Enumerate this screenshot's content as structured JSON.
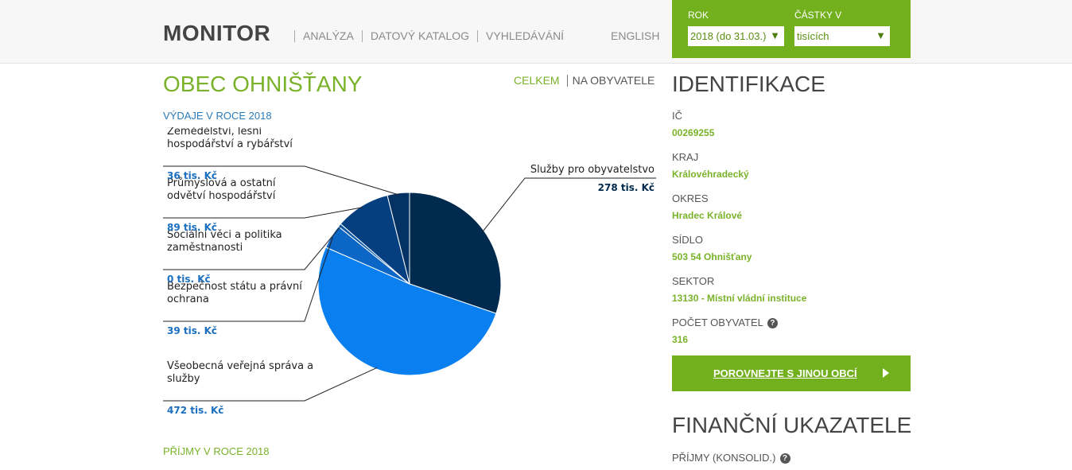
{
  "header": {
    "logo": "MONITOR",
    "nav": [
      "ANALÝZA",
      "DATOVÝ KATALOG",
      "VYHLEDÁVÁNÍ"
    ],
    "language": "ENGLISH",
    "filters": {
      "rok_label": "ROK",
      "rok_value": "2018 (do 31.03.)",
      "castky_label": "ČÁSTKY V",
      "castky_value": "tisících"
    }
  },
  "main": {
    "title": "OBEC OHNIŠŤANY",
    "toggle": {
      "active": "CELKEM",
      "inactive": "NA OBYVATELE"
    },
    "expenses_heading": "VÝDAJE V ROCE 2018",
    "income_heading": "PŘÍJMY V ROCE 2018"
  },
  "chart_data": {
    "type": "pie",
    "title": "",
    "unit": "tis. Kč",
    "slices": [
      {
        "name": "Služby pro obyvatelstvo",
        "lines": [
          "Služby pro obyvatelstvo"
        ],
        "value": 278,
        "label": "278 tis. Kč",
        "color": "#012a4f"
      },
      {
        "name": "Všeobecná veřejná správa a služby",
        "lines": [
          "Všeobecná veřejná správa a",
          "služby"
        ],
        "value": 472,
        "label": "472 tis. Kč",
        "color": "#0a7ff0"
      },
      {
        "name": "Bezpečnost státu a právní ochrana",
        "lines": [
          "Bezpečnost státu a právní",
          "ochrana"
        ],
        "value": 39,
        "label": "39 tis. Kč",
        "color": "#0c66c6"
      },
      {
        "name": "Sociální věci a politika zaměstnanosti",
        "lines": [
          "Sociální věci a politika",
          "zaměstnanosti"
        ],
        "value": 0,
        "label": "0 tis. Kč",
        "color": "#0c5aa8"
      },
      {
        "name": "Průmyslová a ostatní odvětví hospodářství",
        "lines": [
          "Průmyslová a ostatní",
          "odvětví hospodářství"
        ],
        "value": 89,
        "label": "89 tis. Kč",
        "color": "#053f80"
      },
      {
        "name": "Zemědělství, lesní hospodářství a rybářství",
        "lines": [
          "Zemědělství, lesní",
          "hospodářství a rybářství"
        ],
        "value": 36,
        "label": "36 tis. Kč",
        "color": "#033263"
      }
    ]
  },
  "identification": {
    "title": "IDENTIFIKACE",
    "fields": [
      {
        "label": "IČ",
        "value": "00269255"
      },
      {
        "label": "KRAJ",
        "value": "Královéhradecký"
      },
      {
        "label": "OKRES",
        "value": "Hradec Králové"
      },
      {
        "label": "SÍDLO",
        "value": "503 54 Ohnišťany"
      },
      {
        "label": "SEKTOR",
        "value": "13130 - Místní vládní instituce"
      },
      {
        "label": "POČET OBYVATEL",
        "value": "316"
      }
    ],
    "compare_button": "POROVNEJTE S JINOU OBCÍ"
  },
  "financial": {
    "title": "FINANČNÍ UKAZATELE",
    "first_label": "PŘÍJMY (KONSOLID.)"
  },
  "colors": {
    "accent_green": "#72b01d",
    "text_green": "#7ab22a",
    "link_blue": "#2b7bb9"
  },
  "icons": {
    "help": "question-circle-icon",
    "select_arrow": "triangle-down-icon",
    "button_arrow": "play-icon"
  }
}
